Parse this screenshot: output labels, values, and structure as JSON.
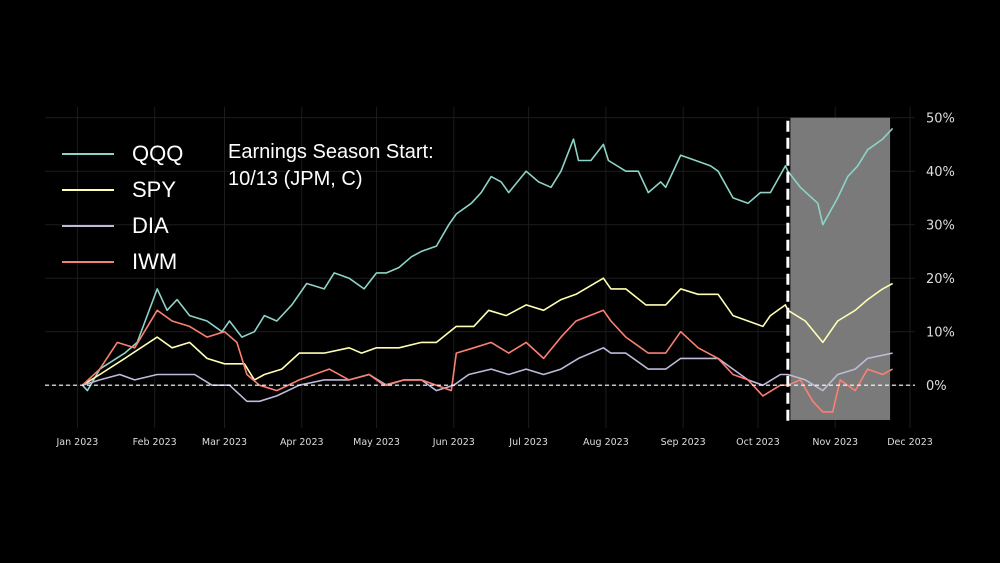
{
  "chart_data": {
    "type": "line",
    "title": "",
    "xlabel": "",
    "ylabel": "",
    "x_ticks": [
      "Jan 2023",
      "Feb 2023",
      "Mar 2023",
      "Apr 2023",
      "May 2023",
      "Jun 2023",
      "Jul 2023",
      "Aug 2023",
      "Sep 2023",
      "Oct 2023",
      "Nov 2023",
      "Dec 2023"
    ],
    "y_ticks": [
      "0%",
      "10%",
      "20%",
      "30%",
      "40%",
      "50%"
    ],
    "y_tick_values": [
      0,
      10,
      20,
      30,
      40,
      50
    ],
    "ylim": [
      -8,
      52
    ],
    "xlim": [
      "2022-12-19",
      "2023-12-03"
    ],
    "y_axis_side": "right",
    "grid": true,
    "legend_position": "top-left",
    "baseline": {
      "value": 0,
      "style": "dashed",
      "color": "#ffffff"
    },
    "event_line": {
      "date": "2023-10-13",
      "style": "dashed",
      "color": "#ffffff"
    },
    "shaded_region": {
      "start": "2023-10-14",
      "end": "2023-11-23",
      "ymin": -6.5,
      "ymax": 50,
      "color": "#7a7a7a"
    },
    "annotation": [
      "Earnings Season Start:",
      "10/13 (JPM, C)"
    ],
    "series": [
      {
        "name": "QQQ",
        "color": "#8dd3c7",
        "points": [
          [
            "2023-01-03",
            0
          ],
          [
            "2023-01-05",
            -1
          ],
          [
            "2023-01-10",
            3
          ],
          [
            "2023-01-20",
            6
          ],
          [
            "2023-01-25",
            8
          ],
          [
            "2023-02-02",
            18
          ],
          [
            "2023-02-06",
            14
          ],
          [
            "2023-02-10",
            16
          ],
          [
            "2023-02-15",
            13
          ],
          [
            "2023-02-22",
            12
          ],
          [
            "2023-02-28",
            10
          ],
          [
            "2023-03-03",
            12
          ],
          [
            "2023-03-08",
            9
          ],
          [
            "2023-03-13",
            10
          ],
          [
            "2023-03-17",
            13
          ],
          [
            "2023-03-22",
            12
          ],
          [
            "2023-03-28",
            15
          ],
          [
            "2023-04-03",
            19
          ],
          [
            "2023-04-10",
            18
          ],
          [
            "2023-04-14",
            21
          ],
          [
            "2023-04-20",
            20
          ],
          [
            "2023-04-26",
            18
          ],
          [
            "2023-05-01",
            21
          ],
          [
            "2023-05-05",
            21
          ],
          [
            "2023-05-10",
            22
          ],
          [
            "2023-05-15",
            24
          ],
          [
            "2023-05-19",
            25
          ],
          [
            "2023-05-25",
            26
          ],
          [
            "2023-05-30",
            30
          ],
          [
            "2023-06-02",
            32
          ],
          [
            "2023-06-08",
            34
          ],
          [
            "2023-06-12",
            36
          ],
          [
            "2023-06-16",
            39
          ],
          [
            "2023-06-20",
            38
          ],
          [
            "2023-06-23",
            36
          ],
          [
            "2023-06-30",
            40
          ],
          [
            "2023-07-05",
            38
          ],
          [
            "2023-07-10",
            37
          ],
          [
            "2023-07-14",
            40
          ],
          [
            "2023-07-19",
            46
          ],
          [
            "2023-07-21",
            42
          ],
          [
            "2023-07-26",
            42
          ],
          [
            "2023-07-31",
            45
          ],
          [
            "2023-08-02",
            42
          ],
          [
            "2023-08-09",
            40
          ],
          [
            "2023-08-14",
            40
          ],
          [
            "2023-08-18",
            36
          ],
          [
            "2023-08-23",
            38
          ],
          [
            "2023-08-25",
            37
          ],
          [
            "2023-08-31",
            43
          ],
          [
            "2023-09-06",
            42
          ],
          [
            "2023-09-12",
            41
          ],
          [
            "2023-09-15",
            40
          ],
          [
            "2023-09-21",
            35
          ],
          [
            "2023-09-27",
            34
          ],
          [
            "2023-10-02",
            36
          ],
          [
            "2023-10-06",
            36
          ],
          [
            "2023-10-12",
            41
          ],
          [
            "2023-10-13",
            40
          ],
          [
            "2023-10-18",
            37
          ],
          [
            "2023-10-25",
            34
          ],
          [
            "2023-10-27",
            30
          ],
          [
            "2023-11-02",
            35
          ],
          [
            "2023-11-06",
            39
          ],
          [
            "2023-11-10",
            41
          ],
          [
            "2023-11-14",
            44
          ],
          [
            "2023-11-20",
            46
          ],
          [
            "2023-11-24",
            48
          ]
        ]
      },
      {
        "name": "SPY",
        "color": "#ffffb3",
        "points": [
          [
            "2023-01-03",
            0
          ],
          [
            "2023-01-10",
            2
          ],
          [
            "2023-01-20",
            5
          ],
          [
            "2023-02-02",
            9
          ],
          [
            "2023-02-08",
            7
          ],
          [
            "2023-02-15",
            8
          ],
          [
            "2023-02-22",
            5
          ],
          [
            "2023-03-01",
            4
          ],
          [
            "2023-03-09",
            4
          ],
          [
            "2023-03-13",
            1
          ],
          [
            "2023-03-17",
            2
          ],
          [
            "2023-03-24",
            3
          ],
          [
            "2023-03-31",
            6
          ],
          [
            "2023-04-10",
            6
          ],
          [
            "2023-04-20",
            7
          ],
          [
            "2023-04-25",
            6
          ],
          [
            "2023-05-01",
            7
          ],
          [
            "2023-05-10",
            7
          ],
          [
            "2023-05-19",
            8
          ],
          [
            "2023-05-25",
            8
          ],
          [
            "2023-06-02",
            11
          ],
          [
            "2023-06-09",
            11
          ],
          [
            "2023-06-15",
            14
          ],
          [
            "2023-06-22",
            13
          ],
          [
            "2023-06-30",
            15
          ],
          [
            "2023-07-07",
            14
          ],
          [
            "2023-07-14",
            16
          ],
          [
            "2023-07-20",
            17
          ],
          [
            "2023-07-31",
            20
          ],
          [
            "2023-08-03",
            18
          ],
          [
            "2023-08-09",
            18
          ],
          [
            "2023-08-17",
            15
          ],
          [
            "2023-08-25",
            15
          ],
          [
            "2023-08-31",
            18
          ],
          [
            "2023-09-07",
            17
          ],
          [
            "2023-09-15",
            17
          ],
          [
            "2023-09-21",
            13
          ],
          [
            "2023-09-27",
            12
          ],
          [
            "2023-10-03",
            11
          ],
          [
            "2023-10-06",
            13
          ],
          [
            "2023-10-12",
            15
          ],
          [
            "2023-10-13",
            14
          ],
          [
            "2023-10-20",
            12
          ],
          [
            "2023-10-27",
            8
          ],
          [
            "2023-11-02",
            12
          ],
          [
            "2023-11-09",
            14
          ],
          [
            "2023-11-14",
            16
          ],
          [
            "2023-11-20",
            18
          ],
          [
            "2023-11-24",
            19
          ]
        ]
      },
      {
        "name": "DIA",
        "color": "#bebada",
        "points": [
          [
            "2023-01-03",
            0
          ],
          [
            "2023-01-10",
            1
          ],
          [
            "2023-01-18",
            2
          ],
          [
            "2023-01-24",
            1
          ],
          [
            "2023-02-02",
            2
          ],
          [
            "2023-02-10",
            2
          ],
          [
            "2023-02-17",
            2
          ],
          [
            "2023-02-24",
            0
          ],
          [
            "2023-03-03",
            0
          ],
          [
            "2023-03-10",
            -3
          ],
          [
            "2023-03-15",
            -3
          ],
          [
            "2023-03-22",
            -2
          ],
          [
            "2023-03-31",
            0
          ],
          [
            "2023-04-10",
            1
          ],
          [
            "2023-04-20",
            1
          ],
          [
            "2023-04-28",
            2
          ],
          [
            "2023-05-05",
            0
          ],
          [
            "2023-05-12",
            1
          ],
          [
            "2023-05-19",
            1
          ],
          [
            "2023-05-25",
            -1
          ],
          [
            "2023-06-01",
            0
          ],
          [
            "2023-06-07",
            2
          ],
          [
            "2023-06-16",
            3
          ],
          [
            "2023-06-23",
            2
          ],
          [
            "2023-06-30",
            3
          ],
          [
            "2023-07-07",
            2
          ],
          [
            "2023-07-14",
            3
          ],
          [
            "2023-07-21",
            5
          ],
          [
            "2023-07-31",
            7
          ],
          [
            "2023-08-03",
            6
          ],
          [
            "2023-08-09",
            6
          ],
          [
            "2023-08-18",
            3
          ],
          [
            "2023-08-25",
            3
          ],
          [
            "2023-08-31",
            5
          ],
          [
            "2023-09-15",
            5
          ],
          [
            "2023-09-21",
            3
          ],
          [
            "2023-09-27",
            1
          ],
          [
            "2023-10-03",
            0
          ],
          [
            "2023-10-10",
            2
          ],
          [
            "2023-10-13",
            2
          ],
          [
            "2023-10-20",
            1
          ],
          [
            "2023-10-27",
            -1
          ],
          [
            "2023-11-02",
            2
          ],
          [
            "2023-11-09",
            3
          ],
          [
            "2023-11-14",
            5
          ],
          [
            "2023-11-24",
            6
          ]
        ]
      },
      {
        "name": "IWM",
        "color": "#fb8072",
        "points": [
          [
            "2023-01-03",
            0
          ],
          [
            "2023-01-10",
            3
          ],
          [
            "2023-01-17",
            8
          ],
          [
            "2023-01-24",
            7
          ],
          [
            "2023-02-02",
            14
          ],
          [
            "2023-02-08",
            12
          ],
          [
            "2023-02-15",
            11
          ],
          [
            "2023-02-22",
            9
          ],
          [
            "2023-03-01",
            10
          ],
          [
            "2023-03-06",
            8
          ],
          [
            "2023-03-10",
            2
          ],
          [
            "2023-03-15",
            0
          ],
          [
            "2023-03-22",
            -1
          ],
          [
            "2023-03-31",
            1
          ],
          [
            "2023-04-06",
            2
          ],
          [
            "2023-04-12",
            3
          ],
          [
            "2023-04-20",
            1
          ],
          [
            "2023-04-28",
            2
          ],
          [
            "2023-05-04",
            0
          ],
          [
            "2023-05-12",
            1
          ],
          [
            "2023-05-19",
            1
          ],
          [
            "2023-05-25",
            0
          ],
          [
            "2023-05-31",
            -1
          ],
          [
            "2023-06-02",
            6
          ],
          [
            "2023-06-09",
            7
          ],
          [
            "2023-06-16",
            8
          ],
          [
            "2023-06-23",
            6
          ],
          [
            "2023-06-30",
            8
          ],
          [
            "2023-07-07",
            5
          ],
          [
            "2023-07-14",
            9
          ],
          [
            "2023-07-20",
            12
          ],
          [
            "2023-07-31",
            14
          ],
          [
            "2023-08-03",
            12
          ],
          [
            "2023-08-09",
            9
          ],
          [
            "2023-08-18",
            6
          ],
          [
            "2023-08-25",
            6
          ],
          [
            "2023-08-31",
            10
          ],
          [
            "2023-09-07",
            7
          ],
          [
            "2023-09-15",
            5
          ],
          [
            "2023-09-21",
            2
          ],
          [
            "2023-09-27",
            1
          ],
          [
            "2023-10-03",
            -2
          ],
          [
            "2023-10-10",
            0
          ],
          [
            "2023-10-13",
            0
          ],
          [
            "2023-10-18",
            1
          ],
          [
            "2023-10-23",
            -3
          ],
          [
            "2023-10-27",
            -5
          ],
          [
            "2023-10-31",
            -5
          ],
          [
            "2023-11-03",
            1
          ],
          [
            "2023-11-09",
            -1
          ],
          [
            "2023-11-14",
            3
          ],
          [
            "2023-11-20",
            2
          ],
          [
            "2023-11-24",
            3
          ]
        ]
      }
    ]
  }
}
